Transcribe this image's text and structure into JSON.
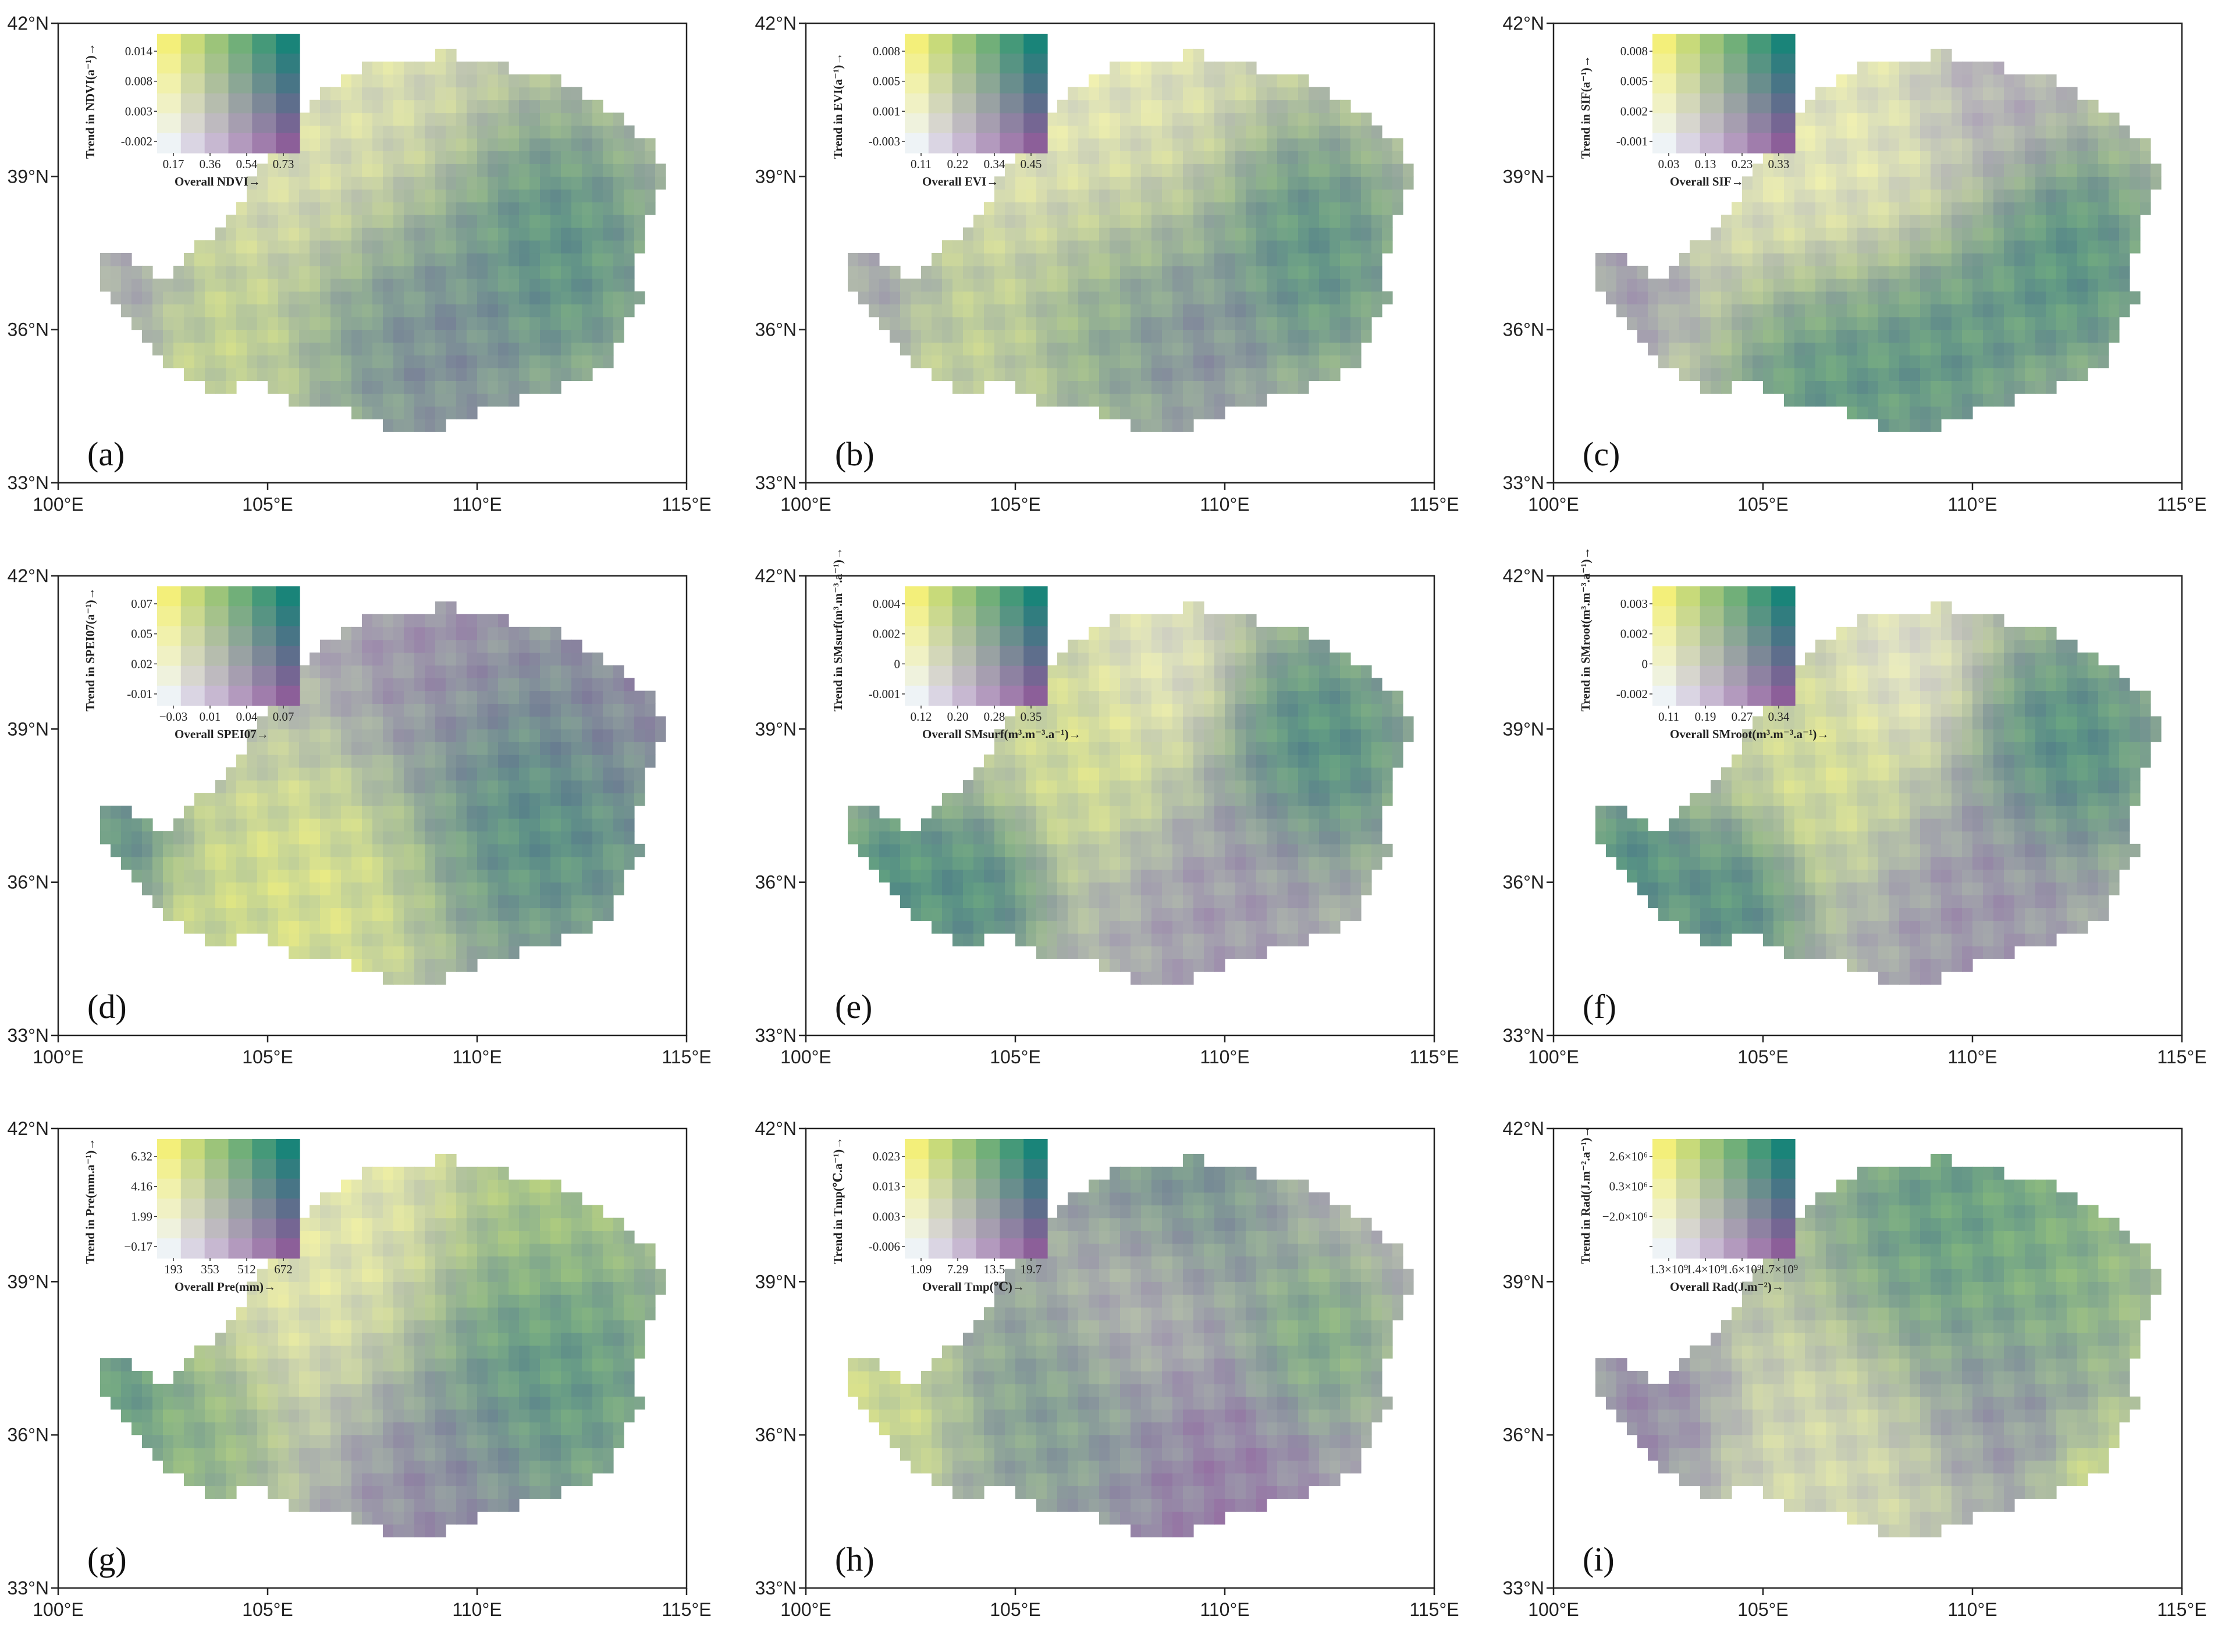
{
  "palette": {
    "low_low": "#eef3f6",
    "low_high": "#f3ef7a",
    "high_low": "#8c5f99",
    "high_high": "#1a8479",
    "frame": "#222222"
  },
  "axes": {
    "x_ticks": [
      "100°E",
      "105°E",
      "110°E",
      "115°E"
    ],
    "y_ticks": [
      "42°N",
      "39°N",
      "36°N",
      "33°N"
    ],
    "x_values": [
      100,
      105,
      110,
      115
    ],
    "y_values": [
      42,
      39,
      36,
      33
    ],
    "xlim": [
      100,
      115
    ],
    "ylim": [
      33,
      42
    ]
  },
  "panels": [
    {
      "label": "(a)",
      "legend": {
        "y_ticks": [
          "0.014",
          "0.008",
          "0.003",
          "-0.002"
        ],
        "x_ticks": [
          "0.17",
          "0.36",
          "0.54",
          "0.73"
        ],
        "y_title": "Trend in NDVI(a⁻¹)→",
        "x_title": "Overall NDVI→"
      }
    },
    {
      "label": "(b)",
      "legend": {
        "y_ticks": [
          "0.008",
          "0.005",
          "0.001",
          "-0.003"
        ],
        "x_ticks": [
          "0.11",
          "0.22",
          "0.34",
          "0.45"
        ],
        "y_title": "Trend in EVI(a⁻¹)→",
        "x_title": "Overall EVI→"
      }
    },
    {
      "label": "(c)",
      "legend": {
        "y_ticks": [
          "0.008",
          "0.005",
          "0.002",
          "-0.001"
        ],
        "x_ticks": [
          "0.03",
          "0.13",
          "0.23",
          "0.33"
        ],
        "y_title": "Trend in SIF(a⁻¹)→",
        "x_title": "Overall SIF→"
      }
    },
    {
      "label": "(d)",
      "legend": {
        "y_ticks": [
          "0.07",
          "0.05",
          "0.02",
          "-0.01"
        ],
        "x_ticks": [
          "−0.03",
          "0.01",
          "0.04",
          "0.07"
        ],
        "y_title": "Trend in SPEI07(a⁻¹)→",
        "x_title": "Overall SPEI07→"
      }
    },
    {
      "label": "(e)",
      "legend": {
        "y_ticks": [
          "0.004",
          "0.002",
          "0",
          "-0.001"
        ],
        "x_ticks": [
          "0.12",
          "0.20",
          "0.28",
          "0.35"
        ],
        "y_title": "Trend in SMsurf(m³.m⁻³.a⁻¹)→",
        "x_title": "Overall SMsurf(m³.m⁻³.a⁻¹)→"
      }
    },
    {
      "label": "(f)",
      "legend": {
        "y_ticks": [
          "0.003",
          "0.002",
          "0",
          "-0.002"
        ],
        "x_ticks": [
          "0.11",
          "0.19",
          "0.27",
          "0.34"
        ],
        "y_title": "Trend in SMroot(m³.m⁻³.a⁻¹)→",
        "x_title": "Overall SMroot(m³.m⁻³.a⁻¹)→"
      }
    },
    {
      "label": "(g)",
      "legend": {
        "y_ticks": [
          "6.32",
          "4.16",
          "1.99",
          "−0.17"
        ],
        "x_ticks": [
          "193",
          "353",
          "512",
          "672"
        ],
        "y_title": "Trend in Pre(mm.a⁻¹)→",
        "x_title": "Overall Pre(mm)→"
      }
    },
    {
      "label": "(h)",
      "legend": {
        "y_ticks": [
          "0.023",
          "0.013",
          "0.003",
          "-0.006"
        ],
        "x_ticks": [
          "1.09",
          "7.29",
          "13.5",
          "19.7"
        ],
        "y_title": "Trend in Tmp(℃.a⁻¹)→",
        "x_title": "Overall Tmp(℃)→"
      }
    },
    {
      "label": "(i)",
      "legend": {
        "y_ticks": [
          "2.6×10⁶",
          "0.3×10⁶",
          "−2.0×10⁶",
          ""
        ],
        "x_ticks": [
          "1.3×10⁹",
          "1.4×10⁹",
          "1.6×10⁹",
          "1.7×10⁹"
        ],
        "y_title": "Trend in Rad(J.m⁻².a⁻¹)→",
        "x_title": "Overall Rad(J.m⁻²)→"
      }
    }
  ]
}
